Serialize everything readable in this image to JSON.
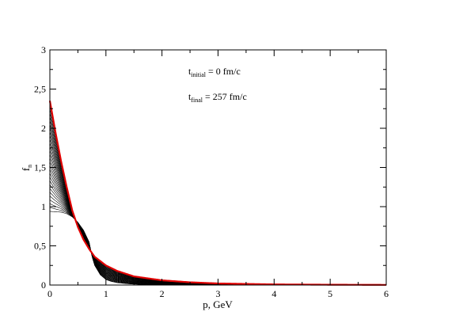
{
  "chart_data": {
    "type": "line",
    "title": "",
    "xlabel": "p, GeV",
    "ylabel": {
      "base": "f",
      "sub": "n"
    },
    "xlim": [
      0,
      6
    ],
    "ylim": [
      0,
      3
    ],
    "x_ticks": [
      0,
      1,
      2,
      3,
      4,
      5,
      6
    ],
    "x_tick_labels": [
      "0",
      "1",
      "2",
      "3",
      "4",
      "5",
      "6"
    ],
    "y_ticks": [
      0,
      0.5,
      1,
      1.5,
      2,
      2.5,
      3
    ],
    "y_tick_labels": [
      "0",
      "0,5",
      "1",
      "1,5",
      "2",
      "2,5",
      "3"
    ],
    "grid": false,
    "legend": "none",
    "annotations": [
      {
        "base": "t",
        "sub": "initial",
        "rest": " = 0 fm/c"
      },
      {
        "base": "t",
        "sub": "final",
        "rest": " = 257 fm/c"
      }
    ],
    "series": [
      {
        "role": "initial",
        "color": "#000000",
        "x": [
          0,
          0.2,
          0.3,
          0.4,
          0.5,
          0.6,
          0.7,
          0.75,
          0.8,
          0.9,
          1.0,
          1.1,
          1.2,
          1.4,
          1.6,
          1.8,
          2.0,
          2.5,
          3.0,
          4.0,
          5.0,
          6.0
        ],
        "y": [
          0.94,
          0.93,
          0.91,
          0.87,
          0.8,
          0.7,
          0.55,
          0.37,
          0.25,
          0.13,
          0.07,
          0.045,
          0.03,
          0.015,
          0.008,
          0.005,
          0.003,
          0.001,
          0.0005,
          0.0002,
          0.0001,
          0.0001
        ]
      },
      {
        "role": "final",
        "color": "#e00000",
        "x": [
          0,
          0.1,
          0.2,
          0.3,
          0.4,
          0.5,
          0.6,
          0.7,
          0.8,
          1.0,
          1.2,
          1.5,
          2.0,
          2.5,
          3.0,
          4.0,
          5.0,
          6.0
        ],
        "y": [
          2.35,
          1.95,
          1.58,
          1.25,
          0.95,
          0.74,
          0.58,
          0.46,
          0.36,
          0.25,
          0.18,
          0.11,
          0.06,
          0.035,
          0.02,
          0.008,
          0.004,
          0.002
        ]
      }
    ],
    "intermediate_curve_count": 28,
    "colors": {
      "intermediate": "#000000",
      "final": "#e00000",
      "axes": "#000000"
    }
  }
}
